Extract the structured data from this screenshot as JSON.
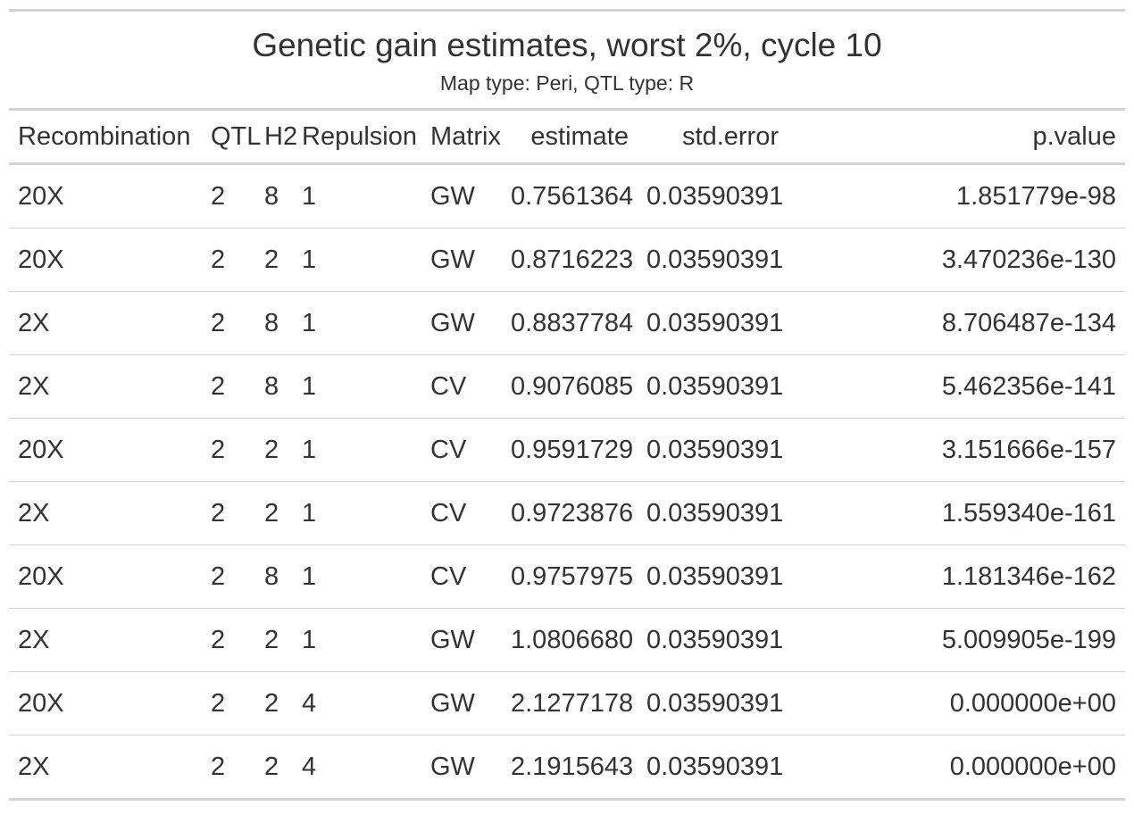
{
  "header": {
    "title": "Genetic gain estimates, worst 2%, cycle 10",
    "subtitle": "Map type: Peri, QTL type: R"
  },
  "table": {
    "columns": [
      "Recombination",
      "QTL",
      "H2",
      "Repulsion",
      "Matrix",
      "estimate",
      "std.error",
      "p.value"
    ],
    "rows": [
      [
        "20X",
        "2",
        "8",
        "1",
        "GW",
        "0.7561364",
        "0.03590391",
        "1.851779e-98"
      ],
      [
        "20X",
        "2",
        "2",
        "1",
        "GW",
        "0.8716223",
        "0.03590391",
        "3.470236e-130"
      ],
      [
        "2X",
        "2",
        "8",
        "1",
        "GW",
        "0.8837784",
        "0.03590391",
        "8.706487e-134"
      ],
      [
        "2X",
        "2",
        "8",
        "1",
        "CV",
        "0.9076085",
        "0.03590391",
        "5.462356e-141"
      ],
      [
        "20X",
        "2",
        "2",
        "1",
        "CV",
        "0.9591729",
        "0.03590391",
        "3.151666e-157"
      ],
      [
        "2X",
        "2",
        "2",
        "1",
        "CV",
        "0.9723876",
        "0.03590391",
        "1.559340e-161"
      ],
      [
        "20X",
        "2",
        "8",
        "1",
        "CV",
        "0.9757975",
        "0.03590391",
        "1.181346e-162"
      ],
      [
        "2X",
        "2",
        "2",
        "1",
        "GW",
        "1.0806680",
        "0.03590391",
        "5.009905e-199"
      ],
      [
        "20X",
        "2",
        "2",
        "4",
        "GW",
        "2.1277178",
        "0.03590391",
        "0.000000e+00"
      ],
      [
        "2X",
        "2",
        "2",
        "4",
        "GW",
        "2.1915643",
        "0.03590391",
        "0.000000e+00"
      ]
    ]
  },
  "colors": {
    "text": "#333333",
    "rule": "#d3d3d3",
    "background": "#ffffff"
  }
}
